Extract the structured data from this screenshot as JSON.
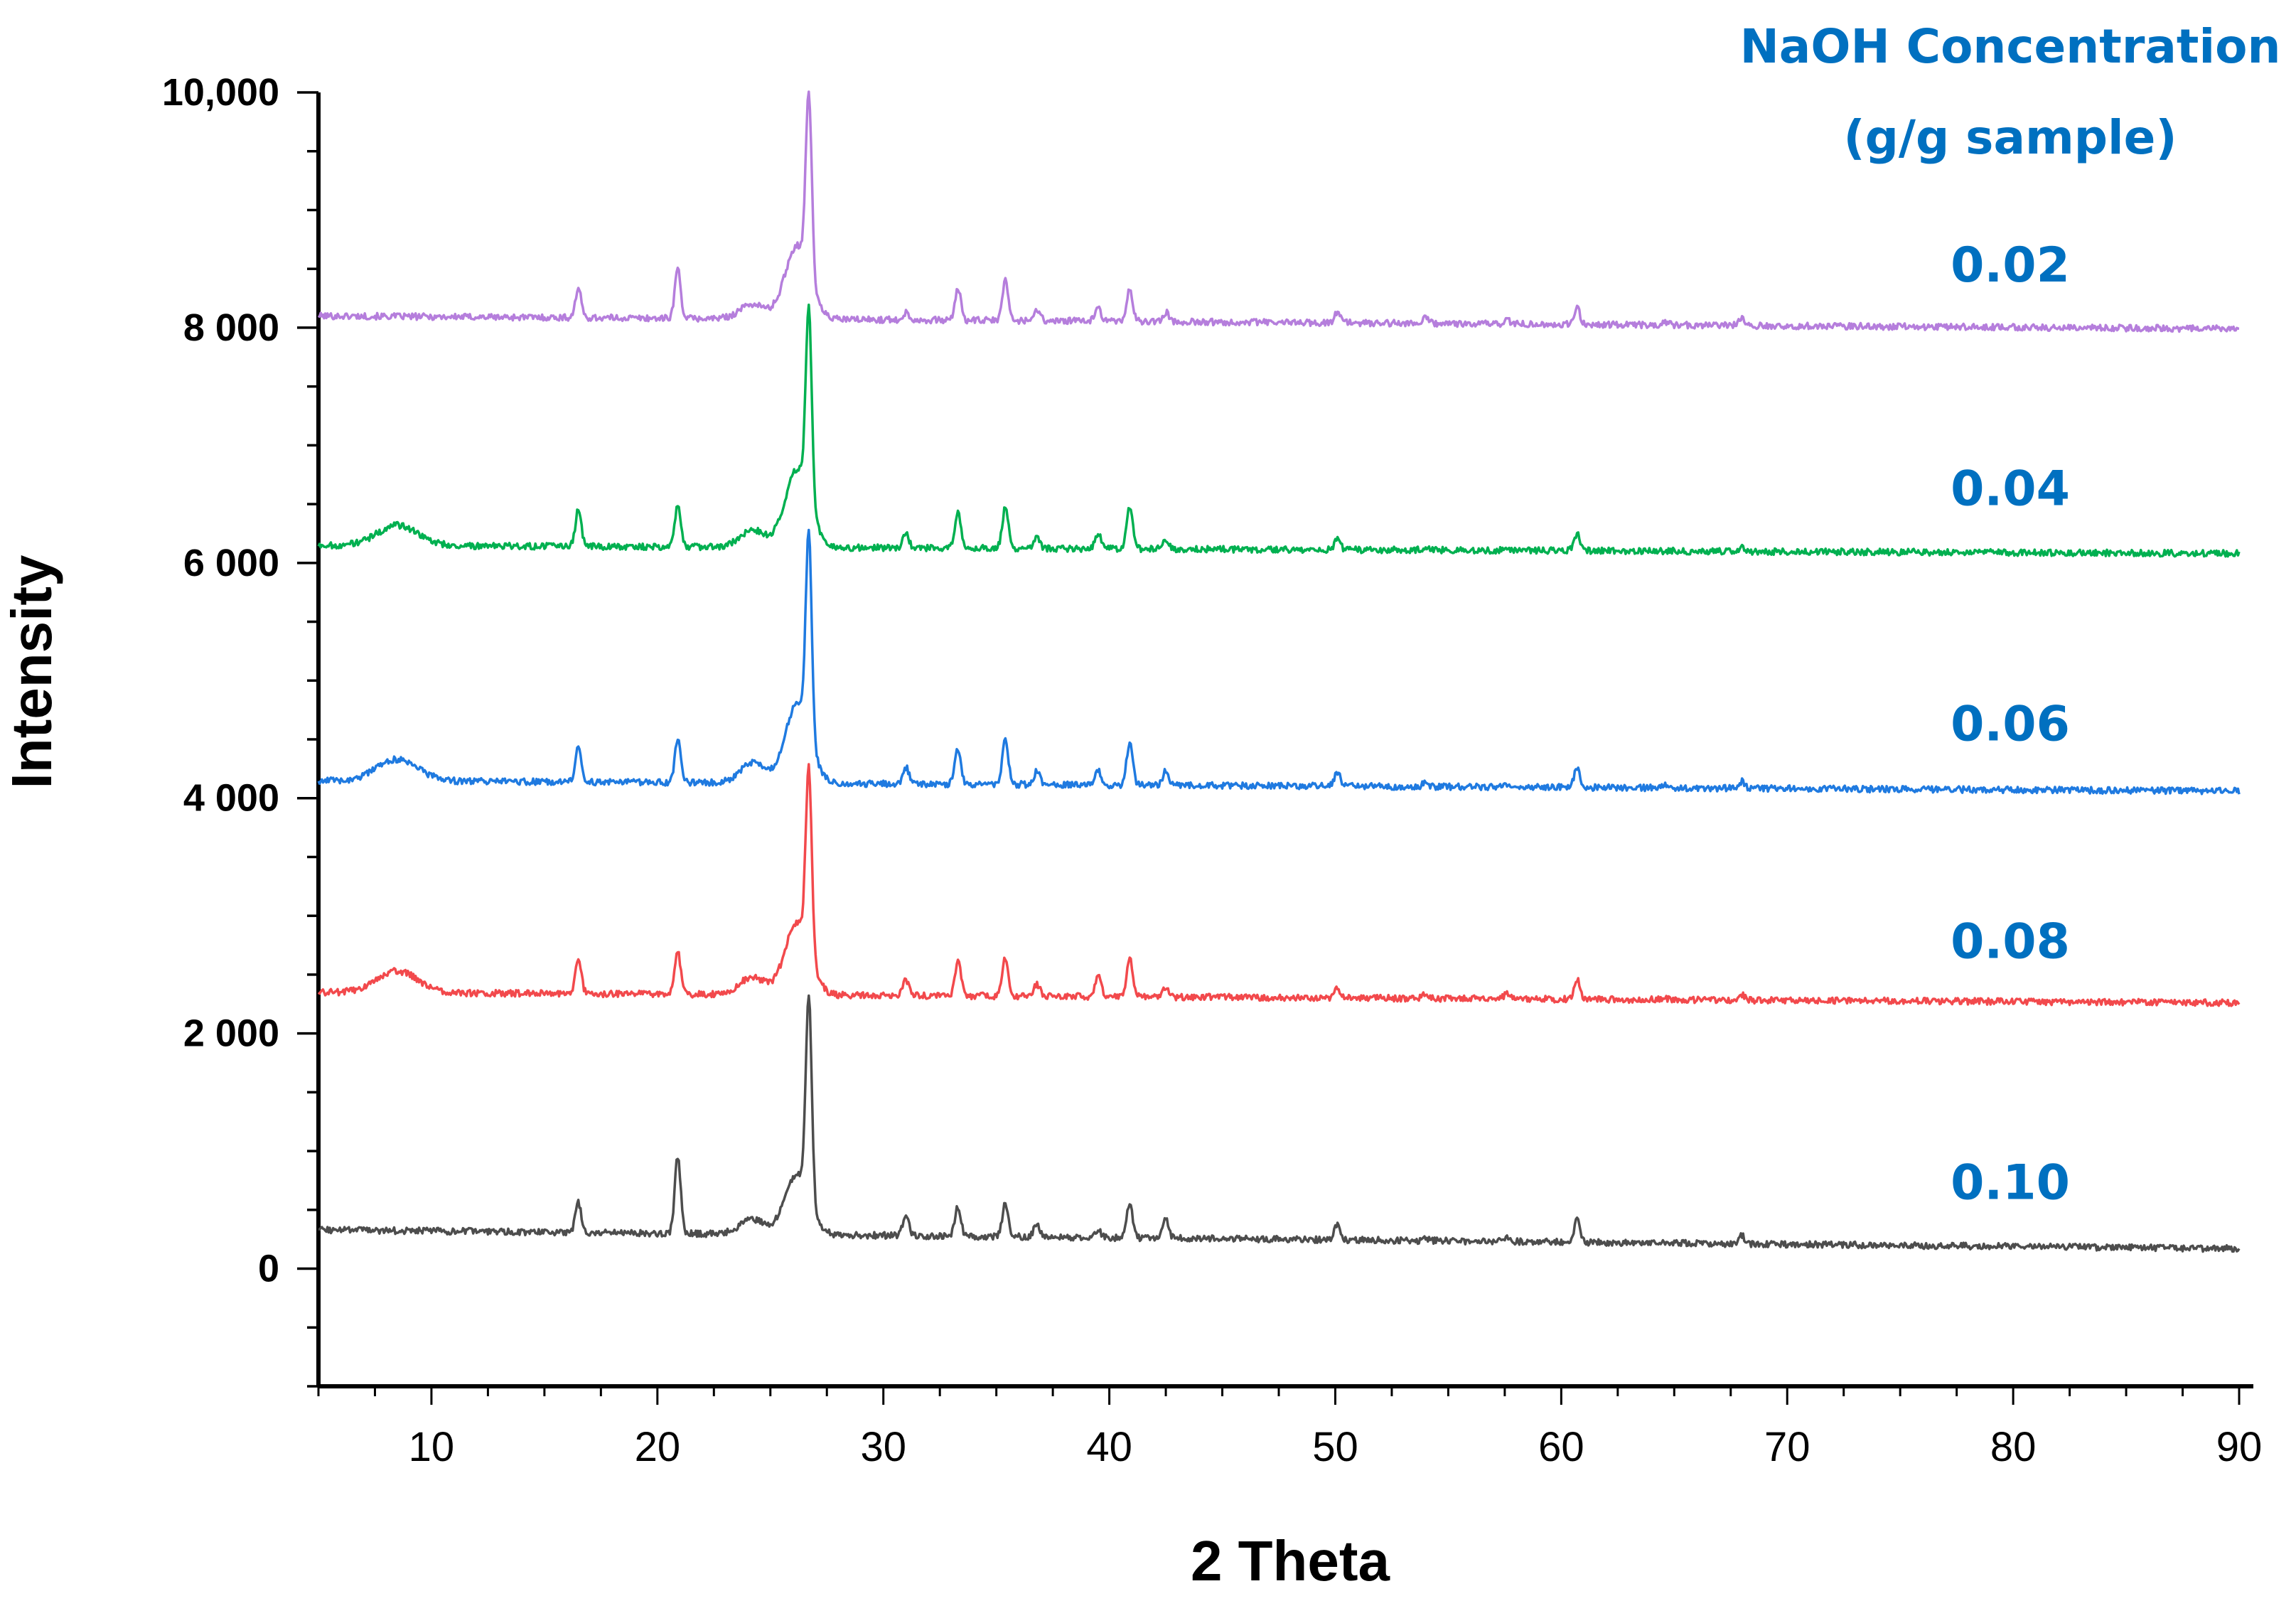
{
  "chart_data": {
    "type": "line",
    "xlabel": "2 Theta",
    "ylabel": "Intensity",
    "xlim": [
      5,
      90
    ],
    "ylim": [
      -1000,
      10000
    ],
    "x_ticks": [
      "10",
      "20",
      "30",
      "40",
      "50",
      "60",
      "70",
      "80",
      "90"
    ],
    "y_ticks": [
      "10,000",
      "8 000",
      "6 000",
      "4 000",
      "2 000",
      "0"
    ],
    "legend_title": [
      "NaOH Concentration",
      "(g/g sample)"
    ],
    "legend_placement": "top-right",
    "grid": false,
    "peaks_2theta": [
      8.5,
      16.5,
      20.9,
      24.2,
      26.2,
      26.7,
      31.0,
      33.3,
      35.4,
      36.8,
      39.5,
      40.9,
      42.5,
      50.1,
      54.0,
      57.6,
      60.7,
      64.6,
      68.0
    ],
    "series": [
      {
        "name": "0.02",
        "color": "#b57edc",
        "x": [
          5,
          8.5,
          13,
          16.5,
          20.9,
          24.2,
          26.2,
          26.7,
          28,
          31.0,
          33.3,
          35.4,
          36.8,
          39.5,
          40.9,
          42.5,
          46,
          50.1,
          54.0,
          57.6,
          60.7,
          64.6,
          68.0,
          75,
          90
        ],
        "y": [
          8100,
          8090,
          8080,
          8330,
          8500,
          8200,
          8700,
          9600,
          8130,
          8130,
          8330,
          8400,
          8160,
          8180,
          8330,
          8130,
          8070,
          8130,
          8080,
          8070,
          8170,
          8050,
          8080,
          8000,
          7990
        ]
      },
      {
        "name": "0.04",
        "color": "#00b050",
        "x": [
          5,
          8.5,
          13,
          16.5,
          20.9,
          24.2,
          26.2,
          26.7,
          28,
          31.0,
          33.3,
          35.4,
          36.8,
          39.5,
          40.9,
          42.5,
          46,
          50.1,
          54.0,
          57.6,
          60.7,
          64.6,
          68.0,
          75,
          90
        ],
        "y": [
          6150,
          6320,
          6150,
          6450,
          6480,
          6280,
          6800,
          7750,
          6280,
          6250,
          6430,
          6480,
          6220,
          6250,
          6470,
          6200,
          6120,
          6200,
          6120,
          6120,
          6250,
          6100,
          6130,
          6100,
          6080
        ]
      },
      {
        "name": "0.06",
        "color": "#1f7ae0",
        "x": [
          5,
          8.5,
          13,
          16.5,
          20.9,
          24.2,
          26.2,
          26.7,
          28,
          31.0,
          33.3,
          35.4,
          36.8,
          39.5,
          40.9,
          42.5,
          46,
          50.1,
          54.0,
          57.6,
          60.7,
          64.6,
          68.0,
          75,
          90
        ],
        "y": [
          4150,
          4330,
          4150,
          4450,
          4500,
          4300,
          4800,
          5820,
          4280,
          4260,
          4420,
          4500,
          4230,
          4230,
          4480,
          4230,
          4130,
          4220,
          4130,
          4120,
          4250,
          4110,
          4140,
          4100,
          4060
        ]
      },
      {
        "name": "0.08",
        "color": "#f2494c",
        "x": [
          5,
          8.5,
          13,
          16.5,
          20.9,
          24.2,
          26.2,
          26.7,
          28,
          31.0,
          33.3,
          35.4,
          36.8,
          39.5,
          40.9,
          42.5,
          46,
          50.1,
          54.0,
          57.6,
          60.7,
          64.6,
          68.0,
          75,
          90
        ],
        "y": [
          2350,
          2530,
          2330,
          2650,
          2700,
          2480,
          2950,
          3850,
          2470,
          2450,
          2620,
          2650,
          2420,
          2500,
          2650,
          2380,
          2320,
          2380,
          2330,
          2340,
          2460,
          2300,
          2330,
          2300,
          2260
        ]
      },
      {
        "name": "0.10",
        "color": "#4d4d4d",
        "x": [
          5,
          8.5,
          13,
          16.5,
          20.9,
          24.2,
          26.2,
          26.7,
          28,
          31.0,
          33.3,
          35.4,
          36.8,
          39.5,
          40.9,
          42.5,
          46,
          50.1,
          54.0,
          57.6,
          60.7,
          64.6,
          68.0,
          75,
          90
        ],
        "y": [
          330,
          300,
          260,
          560,
          950,
          420,
          800,
          2000,
          360,
          460,
          530,
          560,
          380,
          330,
          550,
          420,
          260,
          380,
          260,
          280,
          410,
          230,
          280,
          230,
          170
        ]
      }
    ]
  }
}
